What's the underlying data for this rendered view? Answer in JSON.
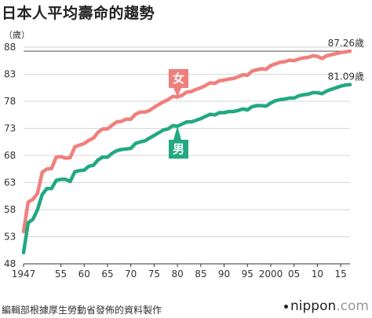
{
  "header": {
    "title": "日本人平均壽命的趨勢"
  },
  "footer": {
    "source": "編輯部根據厚生勞動省發佈的資料製作",
    "brand_name": "nippon",
    "brand_tld": ".com"
  },
  "chart_data": {
    "type": "line",
    "title": "日本人平均壽命的趨勢",
    "ylabel": "（歲）",
    "xlabel": "",
    "ylim": [
      48,
      88
    ],
    "xlim": [
      1947,
      2017
    ],
    "yticks": [
      48,
      53,
      58,
      63,
      68,
      73,
      78,
      83,
      88
    ],
    "xticks": [
      {
        "value": 1947,
        "label": "1947"
      },
      {
        "value": 1955,
        "label": "55"
      },
      {
        "value": 1960,
        "label": "60"
      },
      {
        "value": 1965,
        "label": "65"
      },
      {
        "value": 1970,
        "label": "70"
      },
      {
        "value": 1975,
        "label": "75"
      },
      {
        "value": 1980,
        "label": "80"
      },
      {
        "value": 1985,
        "label": "85"
      },
      {
        "value": 1990,
        "label": "90"
      },
      {
        "value": 1995,
        "label": "95"
      },
      {
        "value": 2000,
        "label": "2000"
      },
      {
        "value": 2005,
        "label": "05"
      },
      {
        "value": 2010,
        "label": "10"
      },
      {
        "value": 2015,
        "label": "15"
      }
    ],
    "grid": "horizontal",
    "reference_line": {
      "value": 87.26
    },
    "series": [
      {
        "name": "女",
        "color": "#f07f7c",
        "end_label": "87.26歲",
        "x": [
          1947,
          1948,
          1949,
          1950,
          1951,
          1952,
          1953,
          1954,
          1955,
          1956,
          1957,
          1958,
          1959,
          1960,
          1961,
          1962,
          1963,
          1964,
          1965,
          1966,
          1967,
          1968,
          1969,
          1970,
          1971,
          1972,
          1973,
          1974,
          1975,
          1976,
          1977,
          1978,
          1979,
          1980,
          1981,
          1982,
          1983,
          1984,
          1985,
          1986,
          1987,
          1988,
          1989,
          1990,
          1991,
          1992,
          1993,
          1994,
          1995,
          1996,
          1997,
          1998,
          1999,
          2000,
          2001,
          2002,
          2003,
          2004,
          2005,
          2006,
          2007,
          2008,
          2009,
          2010,
          2011,
          2012,
          2013,
          2014,
          2015,
          2016,
          2017
        ],
        "values": [
          53.96,
          59.4,
          59.9,
          61.0,
          64.9,
          65.5,
          65.6,
          67.7,
          67.8,
          67.5,
          67.6,
          69.6,
          69.9,
          70.2,
          70.8,
          71.2,
          72.3,
          72.9,
          72.9,
          73.6,
          74.2,
          74.3,
          74.7,
          74.7,
          75.6,
          76.0,
          76.0,
          76.3,
          76.9,
          77.4,
          77.9,
          78.3,
          78.9,
          78.8,
          79.1,
          79.7,
          79.8,
          80.2,
          80.5,
          80.9,
          81.4,
          81.3,
          81.8,
          81.9,
          82.1,
          82.2,
          82.5,
          82.9,
          82.8,
          83.6,
          83.8,
          84.0,
          83.9,
          84.6,
          84.9,
          85.2,
          85.3,
          85.6,
          85.5,
          85.8,
          86.0,
          86.1,
          86.4,
          86.3,
          85.9,
          86.4,
          86.6,
          86.8,
          87.0,
          87.1,
          87.26
        ]
      },
      {
        "name": "男",
        "color": "#22a882",
        "end_label": "81.09歲",
        "x": [
          1947,
          1948,
          1949,
          1950,
          1951,
          1952,
          1953,
          1954,
          1955,
          1956,
          1957,
          1958,
          1959,
          1960,
          1961,
          1962,
          1963,
          1964,
          1965,
          1966,
          1967,
          1968,
          1969,
          1970,
          1971,
          1972,
          1973,
          1974,
          1975,
          1976,
          1977,
          1978,
          1979,
          1980,
          1981,
          1982,
          1983,
          1984,
          1985,
          1986,
          1987,
          1988,
          1989,
          1990,
          1991,
          1992,
          1993,
          1994,
          1995,
          1996,
          1997,
          1998,
          1999,
          2000,
          2001,
          2002,
          2003,
          2004,
          2005,
          2006,
          2007,
          2008,
          2009,
          2010,
          2011,
          2012,
          2013,
          2014,
          2015,
          2016,
          2017
        ],
        "values": [
          50.06,
          55.6,
          56.2,
          58.0,
          60.8,
          61.9,
          61.9,
          63.4,
          63.6,
          63.6,
          63.2,
          65.0,
          65.2,
          65.3,
          66.0,
          66.2,
          67.2,
          67.7,
          67.7,
          68.4,
          68.9,
          69.1,
          69.2,
          69.3,
          70.2,
          70.5,
          70.7,
          71.2,
          71.7,
          72.2,
          72.7,
          72.9,
          73.5,
          73.4,
          73.8,
          74.2,
          74.2,
          74.5,
          74.8,
          75.2,
          75.6,
          75.5,
          75.9,
          75.9,
          76.1,
          76.1,
          76.3,
          76.6,
          76.4,
          77.0,
          77.2,
          77.2,
          77.1,
          77.7,
          78.1,
          78.3,
          78.4,
          78.6,
          78.6,
          79.0,
          79.2,
          79.3,
          79.6,
          79.6,
          79.4,
          79.9,
          80.2,
          80.5,
          80.8,
          81.0,
          81.09
        ]
      }
    ]
  }
}
